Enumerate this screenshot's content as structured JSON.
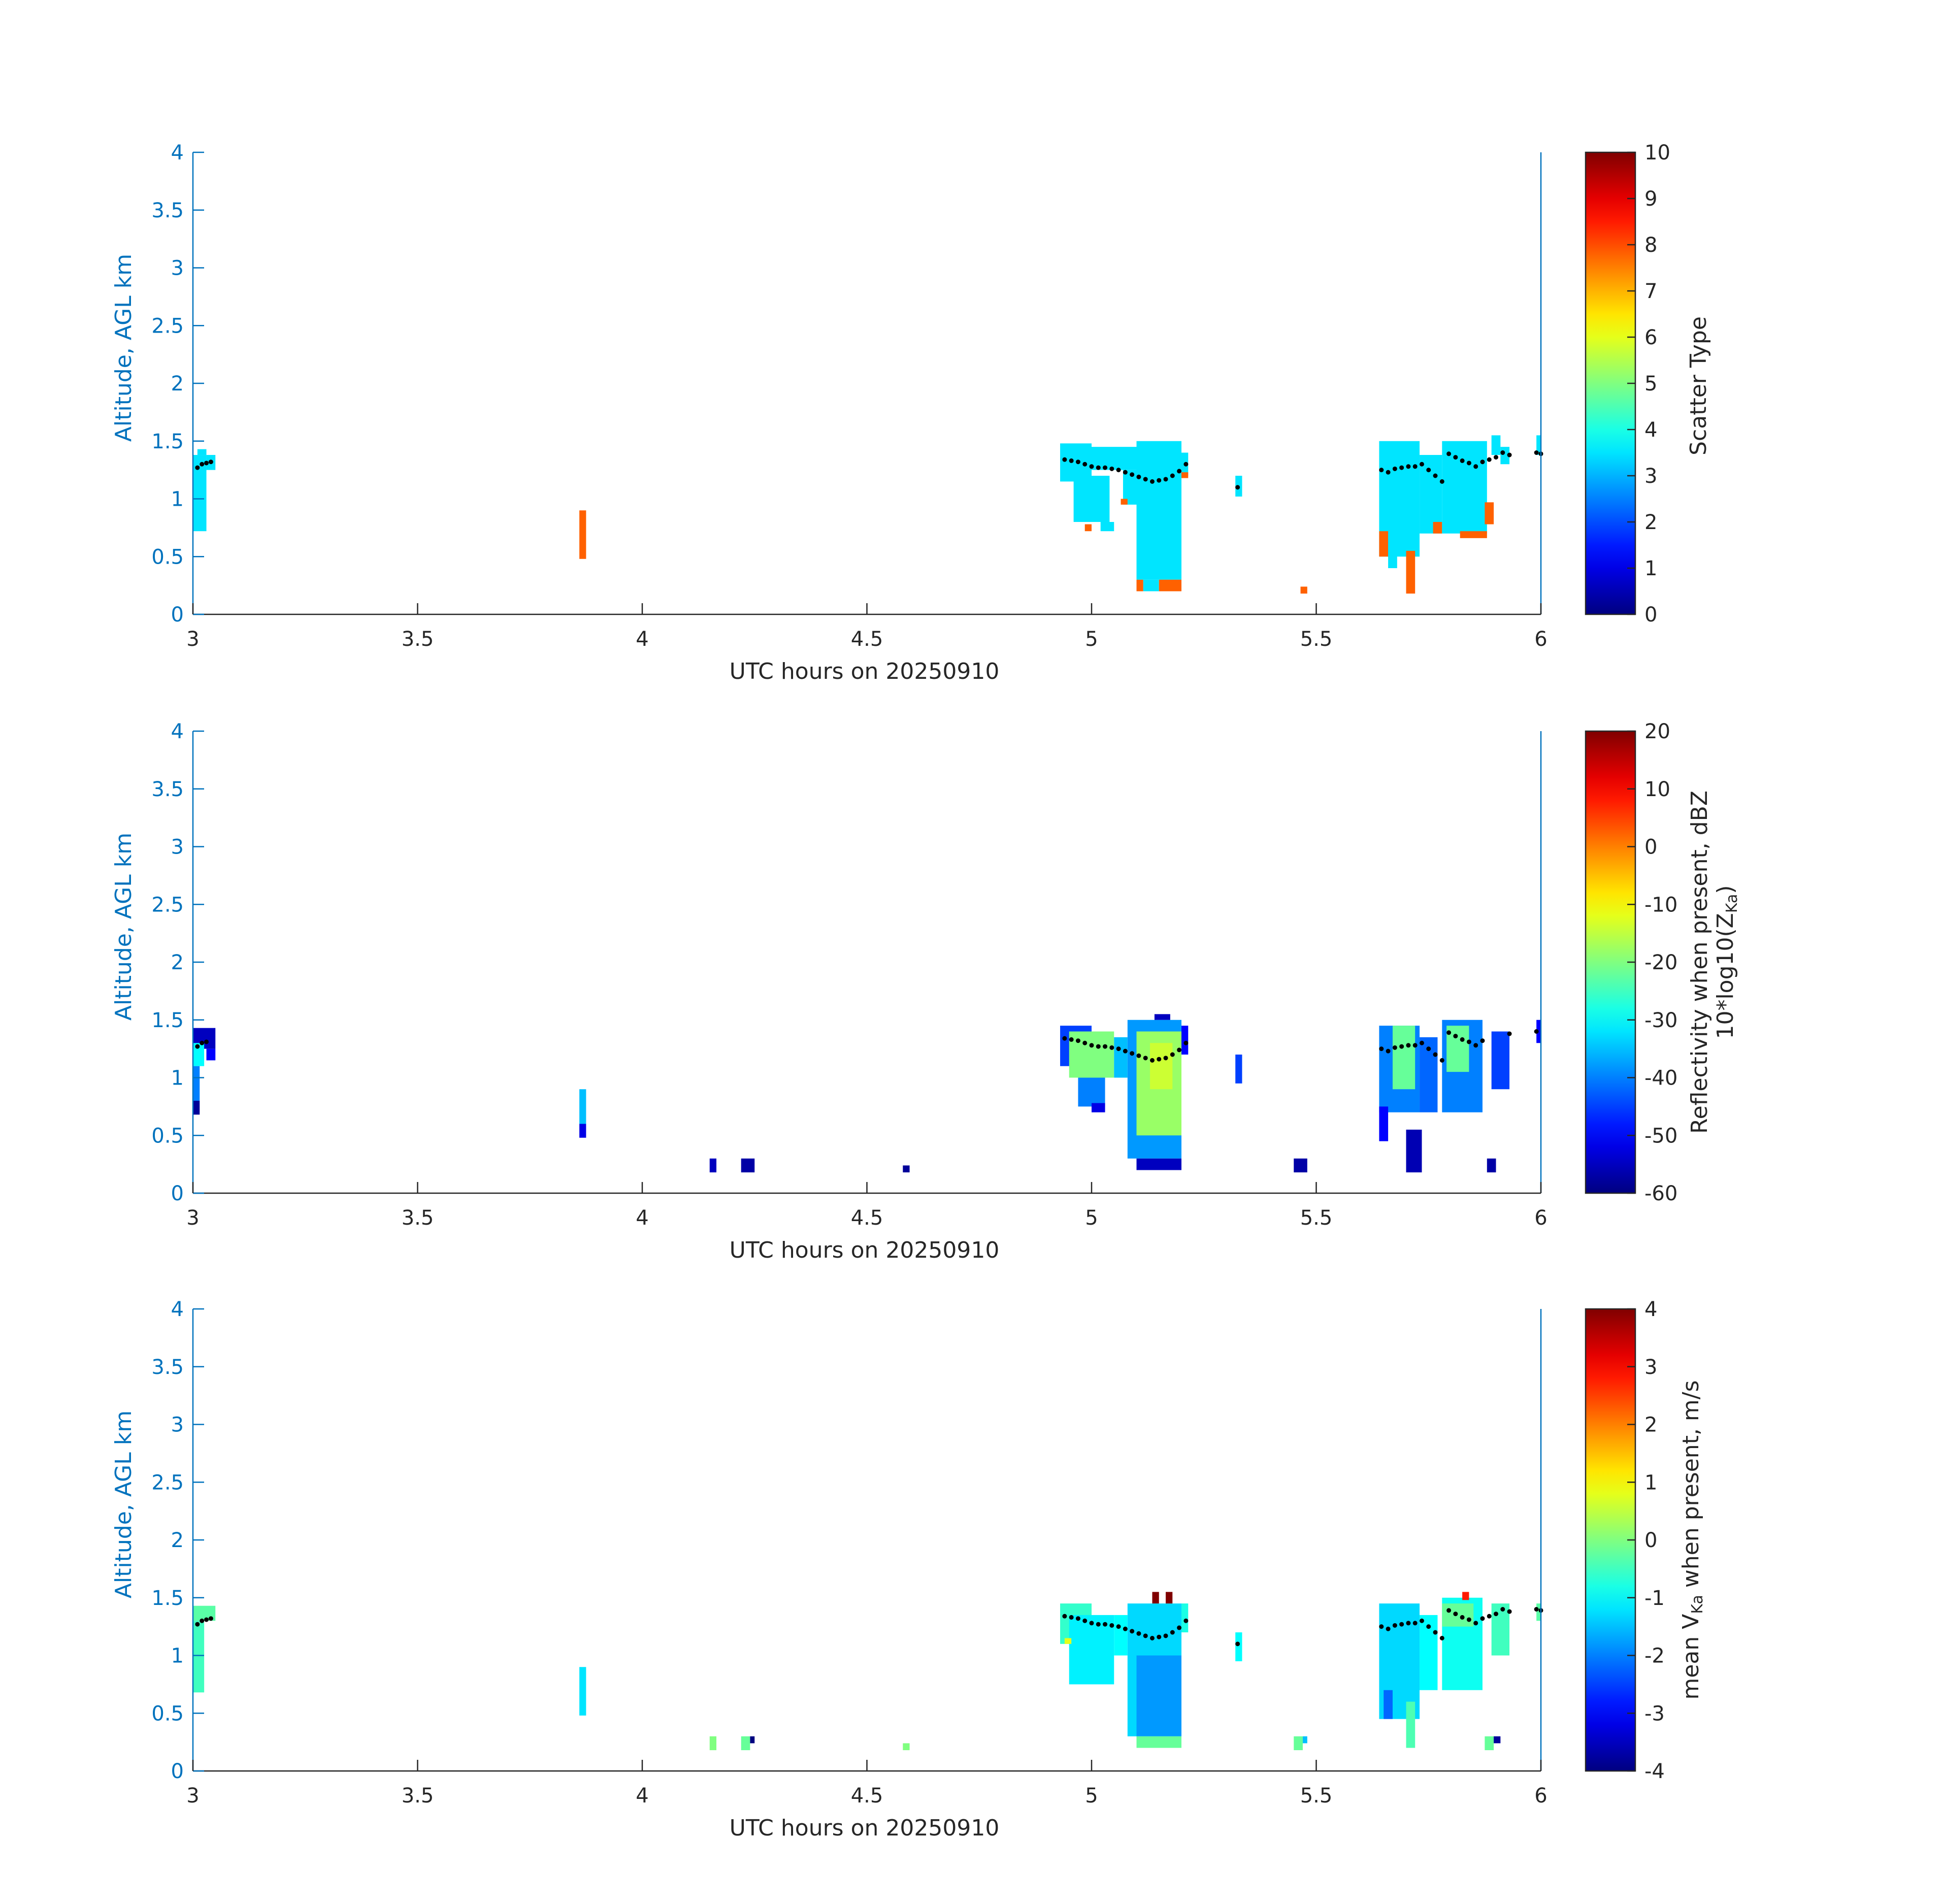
{
  "chart_data": [
    {
      "type": "heatmap",
      "xlabel": "UTC hours on 20250910",
      "ylabel": "Altitude, AGL km",
      "xlim": [
        3,
        6
      ],
      "ylim": [
        0,
        4
      ],
      "xticks": [
        "3",
        "3.5",
        "4",
        "4.5",
        "5",
        "5.5",
        "6"
      ],
      "yticks": [
        "0",
        "0.5",
        "1",
        "1.5",
        "2",
        "2.5",
        "3",
        "3.5",
        "4"
      ],
      "colorbar": {
        "label": "Scatter Type",
        "label2": "",
        "range": [
          0,
          10
        ],
        "ticks": [
          "0",
          "1",
          "2",
          "3",
          "4",
          "5",
          "6",
          "7",
          "8",
          "9",
          "10"
        ],
        "colormap": "jet"
      },
      "cells": [
        {
          "x0": 3.0,
          "x1": 3.03,
          "y0": 0.72,
          "y1": 1.38,
          "v": 3.5
        },
        {
          "x0": 3.01,
          "x1": 3.03,
          "y0": 1.38,
          "y1": 1.43,
          "v": 3.5
        },
        {
          "x0": 3.03,
          "x1": 3.05,
          "y0": 1.25,
          "y1": 1.38,
          "v": 3.5
        },
        {
          "x0": 3.86,
          "x1": 3.875,
          "y0": 0.48,
          "y1": 0.9,
          "v": 7.8
        },
        {
          "x0": 4.93,
          "x1": 5.0,
          "y0": 1.15,
          "y1": 1.48,
          "v": 3.5
        },
        {
          "x0": 4.96,
          "x1": 5.04,
          "y0": 0.8,
          "y1": 1.2,
          "v": 3.5
        },
        {
          "x0": 5.0,
          "x1": 5.1,
          "y0": 1.25,
          "y1": 1.45,
          "v": 3.5
        },
        {
          "x0": 5.02,
          "x1": 5.05,
          "y0": 0.72,
          "y1": 0.8,
          "v": 3.5
        },
        {
          "x0": 4.985,
          "x1": 5.0,
          "y0": 0.72,
          "y1": 0.78,
          "v": 7.8
        },
        {
          "x0": 5.07,
          "x1": 5.1,
          "y0": 0.95,
          "y1": 1.25,
          "v": 3.5
        },
        {
          "x0": 5.065,
          "x1": 5.08,
          "y0": 0.95,
          "y1": 1.0,
          "v": 7.8
        },
        {
          "x0": 5.1,
          "x1": 5.2,
          "y0": 0.3,
          "y1": 1.5,
          "v": 3.5
        },
        {
          "x0": 5.1,
          "x1": 5.115,
          "y0": 0.2,
          "y1": 0.3,
          "v": 7.8
        },
        {
          "x0": 5.115,
          "x1": 5.15,
          "y0": 0.2,
          "y1": 0.3,
          "v": 3.5
        },
        {
          "x0": 5.15,
          "x1": 5.2,
          "y0": 0.2,
          "y1": 0.3,
          "v": 7.8
        },
        {
          "x0": 5.2,
          "x1": 5.215,
          "y0": 1.2,
          "y1": 1.4,
          "v": 3.5
        },
        {
          "x0": 5.2,
          "x1": 5.215,
          "y0": 1.18,
          "y1": 1.23,
          "v": 7.8
        },
        {
          "x0": 5.32,
          "x1": 5.335,
          "y0": 1.02,
          "y1": 1.2,
          "v": 3.5
        },
        {
          "x0": 5.465,
          "x1": 5.48,
          "y0": 0.18,
          "y1": 0.24,
          "v": 7.8
        },
        {
          "x0": 5.64,
          "x1": 5.73,
          "y0": 0.5,
          "y1": 1.5,
          "v": 3.5
        },
        {
          "x0": 5.64,
          "x1": 5.66,
          "y0": 0.5,
          "y1": 0.72,
          "v": 7.8
        },
        {
          "x0": 5.66,
          "x1": 5.68,
          "y0": 0.4,
          "y1": 0.7,
          "v": 3.5
        },
        {
          "x0": 5.7,
          "x1": 5.72,
          "y0": 0.18,
          "y1": 0.55,
          "v": 7.8
        },
        {
          "x0": 5.73,
          "x1": 5.78,
          "y0": 0.7,
          "y1": 1.38,
          "v": 3.5
        },
        {
          "x0": 5.76,
          "x1": 5.78,
          "y0": 0.7,
          "y1": 0.8,
          "v": 7.8
        },
        {
          "x0": 5.78,
          "x1": 5.88,
          "y0": 0.7,
          "y1": 1.5,
          "v": 3.5
        },
        {
          "x0": 5.82,
          "x1": 5.88,
          "y0": 0.66,
          "y1": 0.72,
          "v": 7.8
        },
        {
          "x0": 5.875,
          "x1": 5.895,
          "y0": 0.78,
          "y1": 0.97,
          "v": 7.8
        },
        {
          "x0": 5.89,
          "x1": 5.91,
          "y0": 1.38,
          "y1": 1.55,
          "v": 3.5
        },
        {
          "x0": 5.91,
          "x1": 5.93,
          "y0": 1.3,
          "y1": 1.45,
          "v": 3.5
        },
        {
          "x0": 5.99,
          "x1": 6.0,
          "y0": 1.38,
          "y1": 1.55,
          "v": 3.5
        }
      ],
      "cloud_base": {
        "x": [
          3.01,
          3.02,
          3.03,
          3.04,
          4.94,
          4.955,
          4.97,
          4.985,
          5.0,
          5.015,
          5.03,
          5.045,
          5.06,
          5.075,
          5.09,
          5.105,
          5.12,
          5.135,
          5.15,
          5.165,
          5.18,
          5.195,
          5.21,
          5.325,
          5.645,
          5.66,
          5.675,
          5.69,
          5.705,
          5.72,
          5.735,
          5.75,
          5.765,
          5.78,
          5.795,
          5.81,
          5.825,
          5.84,
          5.855,
          5.87,
          5.885,
          5.9,
          5.915,
          5.93,
          5.99,
          6.0
        ],
        "y": [
          1.27,
          1.3,
          1.31,
          1.32,
          1.34,
          1.33,
          1.32,
          1.3,
          1.28,
          1.27,
          1.27,
          1.26,
          1.25,
          1.23,
          1.21,
          1.19,
          1.17,
          1.15,
          1.16,
          1.17,
          1.2,
          1.24,
          1.3,
          1.1,
          1.25,
          1.23,
          1.26,
          1.27,
          1.28,
          1.28,
          1.3,
          1.25,
          1.2,
          1.15,
          1.39,
          1.36,
          1.33,
          1.31,
          1.28,
          1.32,
          1.34,
          1.36,
          1.4,
          1.38,
          1.4,
          1.39
        ]
      }
    },
    {
      "type": "heatmap",
      "xlabel": "UTC hours on 20250910",
      "ylabel": "Altitude, AGL km",
      "xlim": [
        3,
        6
      ],
      "ylim": [
        0,
        4
      ],
      "xticks": [
        "3",
        "3.5",
        "4",
        "4.5",
        "5",
        "5.5",
        "6"
      ],
      "yticks": [
        "0",
        "0.5",
        "1",
        "1.5",
        "2",
        "2.5",
        "3",
        "3.5",
        "4"
      ],
      "colorbar": {
        "label": "Reflectivity when present, dBZ",
        "label2": "10*log10(Z",
        "label2_sub": "Ka",
        "label2_end": ")",
        "range": [
          -60,
          20
        ],
        "ticks": [
          "-60",
          "-50",
          "-40",
          "-30",
          "-20",
          "-10",
          "0",
          "10",
          "20"
        ],
        "colormap": "jet"
      },
      "cells": [
        {
          "x0": 3.0,
          "x1": 3.05,
          "y0": 1.25,
          "y1": 1.43,
          "v": -55
        },
        {
          "x0": 3.0,
          "x1": 3.025,
          "y0": 1.1,
          "y1": 1.3,
          "v": -30
        },
        {
          "x0": 3.0,
          "x1": 3.015,
          "y0": 0.8,
          "y1": 1.1,
          "v": -40
        },
        {
          "x0": 3.0,
          "x1": 3.015,
          "y0": 0.68,
          "y1": 0.8,
          "v": -58
        },
        {
          "x0": 3.03,
          "x1": 3.05,
          "y0": 1.15,
          "y1": 1.25,
          "v": -50
        },
        {
          "x0": 3.86,
          "x1": 3.875,
          "y0": 0.6,
          "y1": 0.9,
          "v": -35
        },
        {
          "x0": 3.86,
          "x1": 3.875,
          "y0": 0.48,
          "y1": 0.6,
          "v": -52
        },
        {
          "x0": 4.15,
          "x1": 4.165,
          "y0": 0.18,
          "y1": 0.3,
          "v": -55
        },
        {
          "x0": 4.22,
          "x1": 4.25,
          "y0": 0.18,
          "y1": 0.3,
          "v": -57
        },
        {
          "x0": 4.58,
          "x1": 4.595,
          "y0": 0.18,
          "y1": 0.24,
          "v": -58
        },
        {
          "x0": 4.93,
          "x1": 5.0,
          "y0": 1.1,
          "y1": 1.45,
          "v": -45
        },
        {
          "x0": 4.95,
          "x1": 5.05,
          "y0": 1.0,
          "y1": 1.4,
          "v": -20
        },
        {
          "x0": 4.97,
          "x1": 5.03,
          "y0": 0.75,
          "y1": 1.0,
          "v": -40
        },
        {
          "x0": 5.0,
          "x1": 5.03,
          "y0": 0.7,
          "y1": 0.78,
          "v": -52
        },
        {
          "x0": 5.05,
          "x1": 5.08,
          "y0": 1.0,
          "y1": 1.35,
          "v": -35
        },
        {
          "x0": 5.08,
          "x1": 5.2,
          "y0": 0.3,
          "y1": 1.5,
          "v": -38
        },
        {
          "x0": 5.1,
          "x1": 5.2,
          "y0": 0.5,
          "y1": 1.4,
          "v": -18
        },
        {
          "x0": 5.13,
          "x1": 5.18,
          "y0": 0.9,
          "y1": 1.3,
          "v": -14
        },
        {
          "x0": 5.1,
          "x1": 5.2,
          "y0": 0.2,
          "y1": 0.3,
          "v": -55
        },
        {
          "x0": 5.14,
          "x1": 5.175,
          "y0": 1.5,
          "y1": 1.55,
          "v": -55
        },
        {
          "x0": 5.2,
          "x1": 5.215,
          "y0": 1.2,
          "y1": 1.45,
          "v": -50
        },
        {
          "x0": 5.32,
          "x1": 5.335,
          "y0": 0.95,
          "y1": 1.2,
          "v": -45
        },
        {
          "x0": 5.45,
          "x1": 5.48,
          "y0": 0.18,
          "y1": 0.3,
          "v": -57
        },
        {
          "x0": 5.64,
          "x1": 5.73,
          "y0": 0.7,
          "y1": 1.45,
          "v": -40
        },
        {
          "x0": 5.67,
          "x1": 5.72,
          "y0": 0.9,
          "y1": 1.45,
          "v": -22
        },
        {
          "x0": 5.64,
          "x1": 5.66,
          "y0": 0.45,
          "y1": 0.75,
          "v": -50
        },
        {
          "x0": 5.7,
          "x1": 5.735,
          "y0": 0.18,
          "y1": 0.55,
          "v": -56
        },
        {
          "x0": 5.73,
          "x1": 5.77,
          "y0": 0.7,
          "y1": 1.35,
          "v": -42
        },
        {
          "x0": 5.78,
          "x1": 5.87,
          "y0": 0.7,
          "y1": 1.5,
          "v": -40
        },
        {
          "x0": 5.79,
          "x1": 5.84,
          "y0": 1.05,
          "y1": 1.45,
          "v": -22
        },
        {
          "x0": 5.88,
          "x1": 5.9,
          "y0": 0.18,
          "y1": 0.3,
          "v": -57
        },
        {
          "x0": 5.89,
          "x1": 5.93,
          "y0": 0.9,
          "y1": 1.4,
          "v": -45
        },
        {
          "x0": 5.99,
          "x1": 6.0,
          "y0": 1.3,
          "y1": 1.5,
          "v": -50
        }
      ],
      "cloud_base": {
        "x": [
          3.01,
          3.02,
          3.03,
          4.94,
          4.955,
          4.97,
          4.985,
          5.0,
          5.015,
          5.03,
          5.045,
          5.06,
          5.075,
          5.09,
          5.105,
          5.12,
          5.135,
          5.15,
          5.165,
          5.18,
          5.195,
          5.21,
          5.645,
          5.66,
          5.675,
          5.69,
          5.705,
          5.72,
          5.735,
          5.75,
          5.765,
          5.78,
          5.795,
          5.81,
          5.825,
          5.84,
          5.855,
          5.87,
          5.93,
          5.99
        ],
        "y": [
          1.27,
          1.3,
          1.31,
          1.34,
          1.33,
          1.32,
          1.3,
          1.28,
          1.27,
          1.27,
          1.26,
          1.25,
          1.23,
          1.21,
          1.19,
          1.17,
          1.15,
          1.16,
          1.17,
          1.2,
          1.24,
          1.3,
          1.25,
          1.23,
          1.26,
          1.27,
          1.28,
          1.28,
          1.3,
          1.25,
          1.2,
          1.15,
          1.39,
          1.36,
          1.33,
          1.31,
          1.28,
          1.32,
          1.38,
          1.4
        ]
      }
    },
    {
      "type": "heatmap",
      "xlabel": "UTC hours on 20250910",
      "ylabel": "Altitude, AGL km",
      "xlim": [
        3,
        6
      ],
      "ylim": [
        0,
        4
      ],
      "xticks": [
        "3",
        "3.5",
        "4",
        "4.5",
        "5",
        "5.5",
        "6"
      ],
      "yticks": [
        "0",
        "0.5",
        "1",
        "1.5",
        "2",
        "2.5",
        "3",
        "3.5",
        "4"
      ],
      "colorbar": {
        "label": "mean V",
        "label_sub": "Ka",
        "label_end": " when present, m/s",
        "range": [
          -4,
          4
        ],
        "ticks": [
          "-4",
          "-3",
          "-2",
          "-1",
          "0",
          "1",
          "2",
          "3",
          "4"
        ],
        "colormap": "jet"
      },
      "cells": [
        {
          "x0": 3.0,
          "x1": 3.05,
          "y0": 1.3,
          "y1": 1.43,
          "v": -0.3
        },
        {
          "x0": 3.0,
          "x1": 3.025,
          "y0": 0.68,
          "y1": 1.3,
          "v": -0.5
        },
        {
          "x0": 3.86,
          "x1": 3.875,
          "y0": 0.48,
          "y1": 0.9,
          "v": -1.2
        },
        {
          "x0": 4.15,
          "x1": 4.165,
          "y0": 0.18,
          "y1": 0.3,
          "v": 0.0
        },
        {
          "x0": 4.22,
          "x1": 4.24,
          "y0": 0.18,
          "y1": 0.3,
          "v": -0.2
        },
        {
          "x0": 4.24,
          "x1": 4.25,
          "y0": 0.24,
          "y1": 0.3,
          "v": -4.0
        },
        {
          "x0": 4.58,
          "x1": 4.595,
          "y0": 0.18,
          "y1": 0.24,
          "v": 0.0
        },
        {
          "x0": 4.93,
          "x1": 5.0,
          "y0": 1.1,
          "y1": 1.45,
          "v": -0.6
        },
        {
          "x0": 4.95,
          "x1": 5.05,
          "y0": 0.75,
          "y1": 1.35,
          "v": -1.1
        },
        {
          "x0": 4.94,
          "x1": 4.955,
          "y0": 1.1,
          "y1": 1.15,
          "v": 0.8
        },
        {
          "x0": 5.05,
          "x1": 5.08,
          "y0": 1.0,
          "y1": 1.35,
          "v": -1.0
        },
        {
          "x0": 5.08,
          "x1": 5.2,
          "y0": 0.3,
          "y1": 1.45,
          "v": -1.3
        },
        {
          "x0": 5.1,
          "x1": 5.2,
          "y0": 0.3,
          "y1": 1.0,
          "v": -1.8
        },
        {
          "x0": 5.1,
          "x1": 5.2,
          "y0": 0.2,
          "y1": 0.3,
          "v": -0.2
        },
        {
          "x0": 5.135,
          "x1": 5.15,
          "y0": 1.45,
          "y1": 1.55,
          "v": 4.0
        },
        {
          "x0": 5.165,
          "x1": 5.18,
          "y0": 1.45,
          "y1": 1.55,
          "v": 4.0
        },
        {
          "x0": 5.2,
          "x1": 5.215,
          "y0": 1.2,
          "y1": 1.45,
          "v": -0.8
        },
        {
          "x0": 5.32,
          "x1": 5.335,
          "y0": 0.95,
          "y1": 1.2,
          "v": -1.0
        },
        {
          "x0": 5.45,
          "x1": 5.47,
          "y0": 0.18,
          "y1": 0.3,
          "v": -0.2
        },
        {
          "x0": 5.47,
          "x1": 5.48,
          "y0": 0.24,
          "y1": 0.3,
          "v": -1.5
        },
        {
          "x0": 5.64,
          "x1": 5.73,
          "y0": 0.45,
          "y1": 1.45,
          "v": -1.3
        },
        {
          "x0": 5.65,
          "x1": 5.67,
          "y0": 0.45,
          "y1": 0.7,
          "v": -2.2
        },
        {
          "x0": 5.7,
          "x1": 5.72,
          "y0": 0.2,
          "y1": 0.6,
          "v": -0.4
        },
        {
          "x0": 5.73,
          "x1": 5.77,
          "y0": 0.7,
          "y1": 1.35,
          "v": -1.0
        },
        {
          "x0": 5.78,
          "x1": 5.87,
          "y0": 0.7,
          "y1": 1.5,
          "v": -0.9
        },
        {
          "x0": 5.78,
          "x1": 5.85,
          "y0": 1.25,
          "y1": 1.45,
          "v": -0.2
        },
        {
          "x0": 5.825,
          "x1": 5.84,
          "y0": 1.48,
          "y1": 1.55,
          "v": 2.8
        },
        {
          "x0": 5.875,
          "x1": 5.895,
          "y0": 0.18,
          "y1": 0.3,
          "v": -0.2
        },
        {
          "x0": 5.895,
          "x1": 5.91,
          "y0": 0.24,
          "y1": 0.3,
          "v": -3.8
        },
        {
          "x0": 5.89,
          "x1": 5.93,
          "y0": 1.0,
          "y1": 1.45,
          "v": -0.5
        },
        {
          "x0": 5.99,
          "x1": 6.0,
          "y0": 1.3,
          "y1": 1.45,
          "v": -0.3
        }
      ],
      "cloud_base": {
        "x": [
          3.01,
          3.02,
          3.03,
          3.04,
          4.94,
          4.955,
          4.97,
          4.985,
          5.0,
          5.015,
          5.03,
          5.045,
          5.06,
          5.075,
          5.09,
          5.105,
          5.12,
          5.135,
          5.15,
          5.165,
          5.18,
          5.195,
          5.21,
          5.325,
          5.645,
          5.66,
          5.675,
          5.69,
          5.705,
          5.72,
          5.735,
          5.75,
          5.765,
          5.78,
          5.795,
          5.81,
          5.825,
          5.84,
          5.855,
          5.87,
          5.885,
          5.9,
          5.915,
          5.93,
          5.99,
          6.0
        ],
        "y": [
          1.27,
          1.3,
          1.31,
          1.32,
          1.34,
          1.33,
          1.32,
          1.3,
          1.28,
          1.27,
          1.27,
          1.26,
          1.25,
          1.23,
          1.21,
          1.19,
          1.17,
          1.15,
          1.16,
          1.17,
          1.2,
          1.24,
          1.3,
          1.1,
          1.25,
          1.23,
          1.26,
          1.27,
          1.28,
          1.28,
          1.3,
          1.25,
          1.2,
          1.15,
          1.39,
          1.36,
          1.33,
          1.31,
          1.28,
          1.32,
          1.34,
          1.36,
          1.4,
          1.38,
          1.4,
          1.39
        ]
      }
    }
  ]
}
